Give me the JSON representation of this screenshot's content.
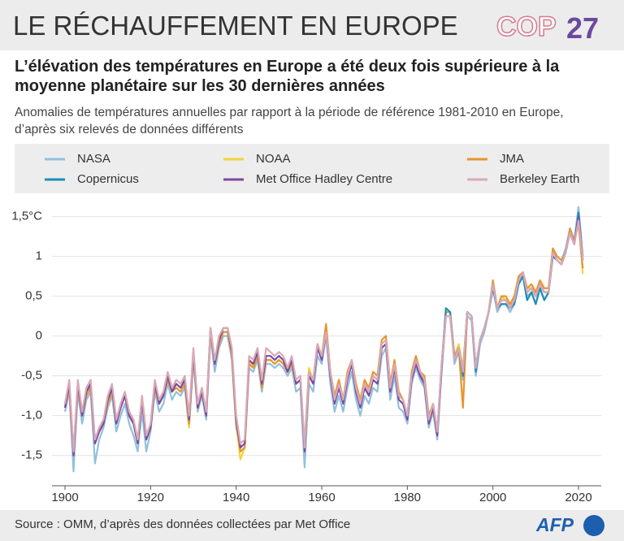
{
  "header": {
    "logo_cop": "COP",
    "logo_num": "27"
  },
  "footer": {
    "source": "Source : OMM, d’après des données collectées par Met Office",
    "logo": "AFP"
  },
  "chart_data": {
    "type": "line",
    "title": "LE RÉCHAUFFEMENT EN EUROPE",
    "subtitle": "L’élévation des températures en Europe a été deux fois supérieure à la moyenne planétaire sur les 30 dernières années",
    "description": "Anomalies de températures annuelles par rapport à la période  de référence 1981-2010 en Europe, d’après six relevés de données différents",
    "x": [
      1900,
      1901,
      1902,
      1903,
      1904,
      1905,
      1906,
      1907,
      1908,
      1909,
      1910,
      1911,
      1912,
      1913,
      1914,
      1915,
      1916,
      1917,
      1918,
      1919,
      1920,
      1921,
      1922,
      1923,
      1924,
      1925,
      1926,
      1927,
      1928,
      1929,
      1930,
      1931,
      1932,
      1933,
      1934,
      1935,
      1936,
      1937,
      1938,
      1939,
      1940,
      1941,
      1942,
      1943,
      1944,
      1945,
      1946,
      1947,
      1948,
      1949,
      1950,
      1951,
      1952,
      1953,
      1954,
      1955,
      1956,
      1957,
      1958,
      1959,
      1960,
      1961,
      1962,
      1963,
      1964,
      1965,
      1966,
      1967,
      1968,
      1969,
      1970,
      1971,
      1972,
      1973,
      1974,
      1975,
      1976,
      1977,
      1978,
      1979,
      1980,
      1981,
      1982,
      1983,
      1984,
      1985,
      1986,
      1987,
      1988,
      1989,
      1990,
      1991,
      1992,
      1993,
      1994,
      1995,
      1996,
      1997,
      1998,
      1999,
      2000,
      2001,
      2002,
      2003,
      2004,
      2005,
      2006,
      2007,
      2008,
      2009,
      2010,
      2011,
      2012,
      2013,
      2014,
      2015,
      2016,
      2017,
      2018,
      2019,
      2020,
      2021
    ],
    "xlim": [
      1897,
      2024
    ],
    "xticks": [
      1900,
      1920,
      1940,
      1960,
      1980,
      2000,
      2020
    ],
    "ylim": [
      -1.85,
      1.7
    ],
    "yticks": [
      {
        "value": -1.5,
        "label": "-1,5"
      },
      {
        "value": -1,
        "label": "-1,0"
      },
      {
        "value": -0.5,
        "label": "-0,5"
      },
      0,
      {
        "value": 0.5,
        "label": "0,5"
      },
      1,
      {
        "value": 1.5,
        "label": "1,5°C"
      }
    ],
    "grid": true,
    "series": [
      {
        "name": "NASA",
        "color": "#92c0de",
        "values": [
          -0.95,
          -0.7,
          -1.7,
          -0.7,
          -1.1,
          -0.8,
          -0.7,
          -1.6,
          -1.3,
          -1.15,
          -0.9,
          -0.75,
          -1.2,
          -1.0,
          -0.85,
          -1.1,
          -1.25,
          -1.45,
          -0.95,
          -1.45,
          -1.2,
          -0.7,
          -0.95,
          -0.85,
          -0.6,
          -0.8,
          -0.7,
          -0.75,
          -0.65,
          -1.15,
          -0.3,
          -0.95,
          -0.75,
          -1.05,
          0.0,
          -0.45,
          -0.15,
          0.0,
          0.0,
          -0.3,
          -1.15,
          -1.45,
          -1.4,
          -0.4,
          -0.45,
          -0.3,
          -0.7,
          -0.35,
          -0.35,
          -0.4,
          -0.35,
          -0.4,
          -0.5,
          -0.4,
          -0.7,
          -0.65,
          -1.65,
          -0.6,
          -0.7,
          -0.25,
          -0.35,
          0.0,
          -0.6,
          -0.95,
          -0.75,
          -0.95,
          -0.65,
          -0.45,
          -0.8,
          -1.0,
          -0.75,
          -0.85,
          -0.65,
          -0.7,
          -0.25,
          -0.15,
          -0.8,
          -0.5,
          -0.9,
          -0.95,
          -1.1,
          -0.6,
          -0.4,
          -0.55,
          -0.65,
          -1.15,
          -0.95,
          -1.3,
          -0.45,
          0.3,
          0.3,
          -0.35,
          -0.2,
          -0.55,
          0.25,
          0.2,
          -0.5,
          -0.1,
          0.05,
          0.3,
          0.6,
          0.3,
          0.4,
          0.4,
          0.3,
          0.4,
          0.65,
          0.75,
          0.5,
          0.55,
          0.4,
          0.6,
          0.45,
          0.55,
          1.1,
          1.0,
          0.95,
          1.1,
          1.35,
          1.2,
          1.62,
          1.0
        ]
      },
      {
        "name": "NOAA",
        "color": "#f2d43a",
        "values": [
          -0.85,
          -0.6,
          -1.45,
          -0.6,
          -0.95,
          -0.7,
          -0.6,
          -1.3,
          -1.15,
          -1.05,
          -0.8,
          -0.65,
          -1.05,
          -0.85,
          -0.7,
          -0.95,
          -1.05,
          -1.3,
          -0.75,
          -1.25,
          -1.1,
          -0.6,
          -0.8,
          -0.7,
          -0.5,
          -0.65,
          -0.6,
          -0.65,
          -0.55,
          -1.15,
          -0.2,
          -0.85,
          -0.65,
          -0.95,
          0.1,
          -0.3,
          -0.05,
          0.05,
          0.05,
          -0.25,
          -1.1,
          -1.55,
          -1.4,
          -0.3,
          -0.4,
          -0.2,
          -0.6,
          -0.3,
          -0.3,
          -0.35,
          -0.3,
          -0.35,
          -0.45,
          -0.35,
          -0.6,
          -0.55,
          -1.35,
          -0.4,
          -0.55,
          -0.1,
          -0.25,
          0.1,
          -0.45,
          -0.8,
          -0.6,
          -0.8,
          -0.5,
          -0.3,
          -0.65,
          -0.85,
          -0.6,
          -0.7,
          -0.5,
          -0.55,
          -0.1,
          -0.05,
          -0.65,
          -0.35,
          -0.75,
          -0.8,
          -1.0,
          -0.5,
          -0.3,
          -0.45,
          -0.55,
          -1.05,
          -0.85,
          -1.2,
          -0.35,
          0.3,
          0.3,
          -0.25,
          -0.1,
          -0.4,
          0.3,
          0.25,
          -0.4,
          -0.05,
          0.1,
          0.3,
          0.65,
          0.35,
          0.5,
          0.45,
          0.35,
          0.45,
          0.75,
          0.8,
          0.6,
          0.6,
          0.5,
          0.65,
          0.6,
          0.6,
          1.05,
          0.95,
          0.9,
          1.05,
          1.3,
          1.15,
          1.45,
          0.78
        ]
      },
      {
        "name": "JMA",
        "color": "#e8952c",
        "values": [
          -0.9,
          -0.65,
          -1.5,
          -0.65,
          -1.0,
          -0.75,
          -0.65,
          -1.35,
          -1.2,
          -1.1,
          -0.85,
          -0.7,
          -1.1,
          -0.9,
          -0.75,
          -1.0,
          -1.1,
          -1.35,
          -0.8,
          -1.3,
          -1.15,
          -0.65,
          -0.85,
          -0.75,
          -0.55,
          -0.7,
          -0.65,
          -0.7,
          -0.6,
          -1.1,
          -0.25,
          -0.9,
          -0.7,
          -1.0,
          0.05,
          -0.35,
          -0.1,
          0.05,
          0.05,
          -0.25,
          -1.1,
          -1.45,
          -1.4,
          -0.35,
          -0.4,
          -0.25,
          -0.65,
          -0.3,
          -0.3,
          -0.35,
          -0.3,
          -0.35,
          -0.45,
          -0.35,
          -0.6,
          -0.55,
          -1.4,
          -0.45,
          -0.55,
          -0.1,
          -0.25,
          0.15,
          -0.45,
          -0.75,
          -0.55,
          -0.8,
          -0.45,
          -0.3,
          -0.6,
          -0.8,
          -0.55,
          -0.65,
          -0.45,
          -0.5,
          -0.05,
          0.0,
          -0.6,
          -0.3,
          -0.7,
          -0.8,
          -1.0,
          -0.45,
          -0.25,
          -0.45,
          -0.5,
          -1.0,
          -0.85,
          -1.2,
          -0.35,
          0.3,
          0.3,
          -0.25,
          -0.15,
          -0.9,
          0.3,
          0.25,
          -0.4,
          -0.05,
          0.1,
          0.3,
          0.7,
          0.35,
          0.5,
          0.5,
          0.4,
          0.5,
          0.75,
          0.8,
          0.6,
          0.65,
          0.55,
          0.7,
          0.6,
          0.6,
          1.1,
          1.0,
          0.95,
          1.05,
          1.35,
          1.2,
          1.4,
          0.85
        ]
      },
      {
        "name": "Copernicus",
        "color": "#1c8fb6",
        "values": [
          null,
          null,
          null,
          null,
          null,
          null,
          null,
          null,
          null,
          null,
          null,
          null,
          null,
          null,
          null,
          null,
          null,
          null,
          null,
          null,
          null,
          null,
          null,
          null,
          null,
          null,
          null,
          null,
          null,
          null,
          null,
          null,
          null,
          null,
          null,
          null,
          null,
          null,
          null,
          null,
          null,
          null,
          null,
          null,
          null,
          null,
          null,
          null,
          null,
          null,
          null,
          null,
          null,
          null,
          null,
          null,
          null,
          null,
          null,
          null,
          null,
          null,
          null,
          null,
          null,
          null,
          null,
          null,
          null,
          null,
          null,
          null,
          null,
          null,
          null,
          null,
          null,
          null,
          null,
          -0.85,
          -1.0,
          -0.5,
          -0.3,
          -0.5,
          -0.55,
          -1.05,
          -0.9,
          -1.2,
          -0.4,
          0.35,
          0.3,
          -0.3,
          -0.15,
          -0.5,
          0.3,
          0.25,
          -0.45,
          -0.05,
          0.1,
          0.3,
          0.6,
          0.35,
          0.4,
          0.4,
          0.35,
          0.4,
          0.65,
          0.75,
          0.45,
          0.55,
          0.4,
          0.6,
          0.45,
          0.55,
          1.0,
          0.95,
          0.9,
          1.05,
          1.3,
          1.15,
          1.55,
          0.95
        ]
      },
      {
        "name": "Met Office Hadley Centre",
        "color": "#7a4b9e",
        "values": [
          -0.9,
          -0.6,
          -1.5,
          -0.6,
          -1.0,
          -0.7,
          -0.6,
          -1.35,
          -1.2,
          -1.1,
          -0.8,
          -0.65,
          -1.1,
          -0.9,
          -0.75,
          -1.0,
          -1.1,
          -1.35,
          -0.8,
          -1.3,
          -1.15,
          -0.6,
          -0.85,
          -0.75,
          -0.5,
          -0.7,
          -0.6,
          -0.65,
          -0.55,
          -1.05,
          -0.2,
          -0.9,
          -0.7,
          -1.0,
          0.1,
          -0.35,
          -0.05,
          0.1,
          0.1,
          -0.2,
          -1.05,
          -1.4,
          -1.35,
          -0.3,
          -0.35,
          -0.2,
          -0.6,
          -0.25,
          -0.25,
          -0.3,
          -0.25,
          -0.3,
          -0.45,
          -0.3,
          -0.6,
          -0.55,
          -1.45,
          -0.5,
          -0.6,
          -0.15,
          -0.3,
          0.05,
          -0.5,
          -0.85,
          -0.65,
          -0.85,
          -0.55,
          -0.35,
          -0.7,
          -0.9,
          -0.65,
          -0.75,
          -0.55,
          -0.6,
          -0.15,
          -0.1,
          -0.7,
          -0.4,
          -0.8,
          -0.85,
          -1.05,
          -0.55,
          -0.35,
          -0.5,
          -0.6,
          -1.1,
          -0.9,
          -1.25,
          -0.4,
          0.25,
          0.25,
          -0.3,
          -0.15,
          -0.45,
          0.3,
          0.25,
          -0.4,
          -0.05,
          0.1,
          0.3,
          0.65,
          0.35,
          0.45,
          0.45,
          0.35,
          0.45,
          0.7,
          0.8,
          0.55,
          0.6,
          0.5,
          0.65,
          0.55,
          0.55,
          1.05,
          0.95,
          0.9,
          1.05,
          1.3,
          1.15,
          1.5,
          0.95
        ]
      },
      {
        "name": "Berkeley Earth",
        "color": "#d9a9ba",
        "values": [
          -0.85,
          -0.55,
          -1.45,
          -0.55,
          -0.95,
          -0.65,
          -0.55,
          -1.3,
          -1.15,
          -1.05,
          -0.75,
          -0.6,
          -1.05,
          -0.85,
          -0.7,
          -0.95,
          -1.05,
          -1.3,
          -0.75,
          -1.25,
          -1.1,
          -0.55,
          -0.8,
          -0.7,
          -0.45,
          -0.65,
          -0.55,
          -0.6,
          -0.5,
          -1.0,
          -0.15,
          -0.85,
          -0.65,
          -0.95,
          0.1,
          -0.3,
          0.0,
          0.1,
          0.1,
          -0.15,
          -1.0,
          -1.35,
          -1.3,
          -0.25,
          -0.3,
          -0.15,
          -0.55,
          -0.15,
          -0.2,
          -0.25,
          -0.2,
          -0.25,
          -0.4,
          -0.25,
          -0.55,
          -0.5,
          -1.4,
          -0.45,
          -0.55,
          -0.1,
          -0.25,
          0.05,
          -0.45,
          -0.8,
          -0.6,
          -0.8,
          -0.5,
          -0.3,
          -0.65,
          -0.85,
          -0.6,
          -0.7,
          -0.5,
          -0.55,
          -0.1,
          -0.05,
          -0.65,
          -0.35,
          -0.75,
          -0.8,
          -1.0,
          -0.5,
          -0.3,
          -0.45,
          -0.55,
          -1.05,
          -0.85,
          -1.2,
          -0.35,
          0.25,
          0.25,
          -0.3,
          -0.15,
          -0.45,
          0.3,
          0.25,
          -0.4,
          -0.05,
          0.1,
          0.3,
          0.65,
          0.35,
          0.45,
          0.45,
          0.35,
          0.45,
          0.7,
          0.8,
          0.55,
          0.6,
          0.5,
          0.65,
          0.55,
          0.55,
          1.05,
          0.95,
          0.9,
          1.05,
          1.3,
          1.15,
          1.45,
          0.95
        ]
      }
    ]
  }
}
